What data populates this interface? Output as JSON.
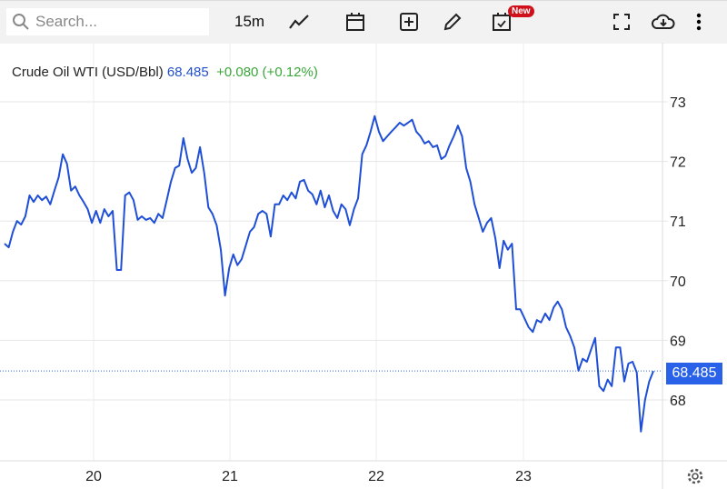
{
  "toolbar": {
    "search_placeholder": "Search...",
    "interval": "15m",
    "new_badge": "New",
    "icons": [
      "search-icon",
      "line-chart-icon",
      "calendar-icon",
      "add-indicator-icon",
      "pencil-icon",
      "calendar-check-icon",
      "fullscreen-icon",
      "cloud-download-icon",
      "more-vert-icon"
    ]
  },
  "legend": {
    "title": "Crude Oil WTI (USD/Bbl)",
    "price": "68.485",
    "change": "+0.080 (+0.12%)"
  },
  "colors": {
    "line": "#1f4fd6",
    "price_tag": "#2962e8",
    "change": "#3aa63a"
  },
  "chart_data": {
    "type": "line",
    "title": "Crude Oil WTI (USD/Bbl)",
    "ylim": [
      67.0,
      73.9
    ],
    "y_ticks": [
      73,
      72,
      71,
      70,
      69,
      68
    ],
    "x_ticks": [
      "20",
      "21",
      "22",
      "23"
    ],
    "last_value": "68.485",
    "grid": true,
    "values": [
      70.62,
      70.56,
      70.82,
      71.0,
      70.94,
      71.08,
      71.43,
      71.32,
      71.43,
      71.35,
      71.41,
      71.28,
      71.51,
      71.73,
      72.12,
      71.96,
      71.51,
      71.58,
      71.43,
      71.32,
      71.2,
      70.97,
      71.17,
      70.97,
      71.2,
      71.08,
      71.17,
      70.18,
      70.18,
      71.43,
      71.48,
      71.35,
      71.02,
      71.08,
      71.02,
      71.05,
      70.97,
      71.12,
      71.05,
      71.35,
      71.66,
      71.89,
      71.93,
      72.39,
      72.04,
      71.81,
      71.89,
      72.24,
      71.81,
      71.23,
      71.12,
      70.93,
      70.52,
      69.75,
      70.21,
      70.44,
      70.26,
      70.36,
      70.59,
      70.82,
      70.9,
      71.12,
      71.17,
      71.12,
      70.74,
      71.28,
      71.28,
      71.43,
      71.35,
      71.48,
      71.38,
      71.66,
      71.69,
      71.51,
      71.45,
      71.28,
      71.51,
      71.23,
      71.43,
      71.17,
      71.05,
      71.28,
      71.2,
      70.93,
      71.2,
      71.38,
      72.12,
      72.27,
      72.5,
      72.76,
      72.5,
      72.34,
      72.42,
      72.5,
      72.57,
      72.65,
      72.6,
      72.65,
      72.7,
      72.5,
      72.42,
      72.3,
      72.34,
      72.24,
      72.27,
      72.04,
      72.09,
      72.27,
      72.42,
      72.6,
      72.42,
      71.89,
      71.66,
      71.28,
      71.05,
      70.82,
      70.97,
      71.05,
      70.71,
      70.21,
      70.67,
      70.52,
      70.62,
      69.52,
      69.52,
      69.37,
      69.22,
      69.14,
      69.34,
      69.3,
      69.45,
      69.34,
      69.55,
      69.65,
      69.52,
      69.22,
      69.07,
      68.88,
      68.49,
      68.69,
      68.64,
      68.84,
      69.04,
      68.23,
      68.15,
      68.34,
      68.23,
      68.88,
      68.88,
      68.31,
      68.61,
      68.64,
      68.46,
      67.47,
      68.0,
      68.31,
      68.485
    ]
  }
}
